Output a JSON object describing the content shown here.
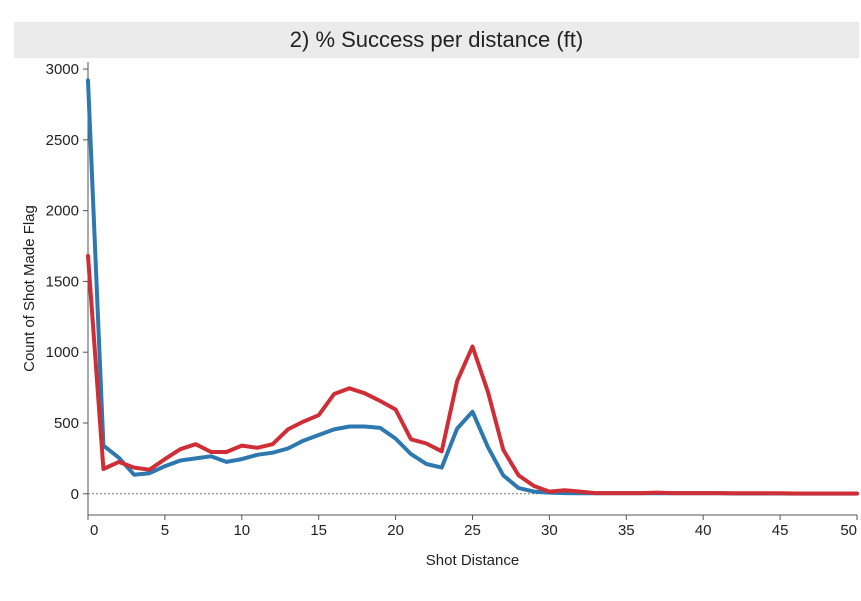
{
  "chart_data": {
    "type": "line",
    "title": "2) % Success per distance (ft)",
    "xlabel": "Shot Distance",
    "ylabel": "Count of Shot Made Flag",
    "xlim": [
      0,
      50
    ],
    "ylim": [
      -150,
      3050
    ],
    "x_ticks": [
      0,
      5,
      10,
      15,
      20,
      25,
      30,
      35,
      40,
      45,
      50
    ],
    "y_ticks": [
      0,
      500,
      1000,
      1500,
      2000,
      2500,
      3000
    ],
    "grid": false,
    "zero_line": true,
    "x": [
      0,
      1,
      2,
      3,
      4,
      5,
      6,
      7,
      8,
      9,
      10,
      11,
      12,
      13,
      14,
      15,
      16,
      17,
      18,
      19,
      20,
      21,
      22,
      23,
      24,
      25,
      26,
      27,
      28,
      29,
      30,
      31,
      32,
      33,
      34,
      35,
      36,
      37,
      38,
      39,
      40,
      41,
      42,
      43,
      44,
      45,
      46,
      47,
      48,
      49,
      50
    ],
    "series": [
      {
        "color": "#2e78b0",
        "values": [
          2920,
          340,
          255,
          135,
          145,
          195,
          235,
          250,
          265,
          225,
          245,
          275,
          290,
          320,
          375,
          415,
          455,
          475,
          475,
          465,
          390,
          280,
          210,
          185,
          460,
          580,
          330,
          130,
          40,
          15,
          8,
          5,
          3,
          3,
          3,
          3,
          3,
          4,
          3,
          3,
          3,
          3,
          2,
          2,
          2,
          2,
          1,
          1,
          1,
          1,
          1
        ]
      },
      {
        "color": "#cf2e36",
        "values": [
          1680,
          175,
          225,
          185,
          170,
          245,
          315,
          350,
          295,
          295,
          340,
          325,
          350,
          455,
          510,
          555,
          705,
          745,
          710,
          655,
          595,
          385,
          355,
          300,
          795,
          1040,
          720,
          310,
          130,
          55,
          15,
          25,
          15,
          5,
          5,
          5,
          5,
          8,
          5,
          5,
          5,
          5,
          3,
          3,
          3,
          3,
          2,
          2,
          2,
          2,
          2
        ]
      }
    ]
  }
}
